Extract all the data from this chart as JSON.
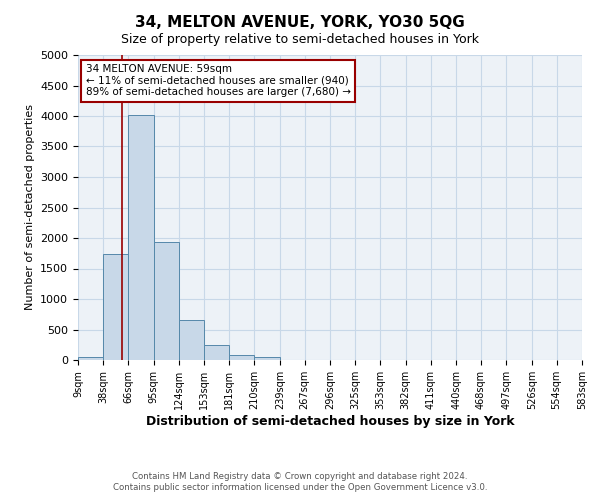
{
  "title": "34, MELTON AVENUE, YORK, YO30 5QG",
  "subtitle": "Size of property relative to semi-detached houses in York",
  "xlabel": "Distribution of semi-detached houses by size in York",
  "ylabel": "Number of semi-detached properties",
  "bar_color": "#c8d8e8",
  "bar_edge_color": "#5588aa",
  "grid_color": "#c8d8e8",
  "background_color": "#edf2f7",
  "property_line_x": 59,
  "property_line_color": "#990000",
  "annotation_line1": "34 MELTON AVENUE: 59sqm",
  "annotation_line2": "← 11% of semi-detached houses are smaller (940)",
  "annotation_line3": "89% of semi-detached houses are larger (7,680) →",
  "bin_edges": [
    9,
    38,
    66,
    95,
    124,
    153,
    181,
    210,
    239,
    267,
    296,
    325,
    353,
    382,
    411,
    440,
    468,
    497,
    526,
    554,
    583
  ],
  "bin_counts": [
    50,
    1730,
    4020,
    1940,
    650,
    250,
    80,
    50,
    0,
    0,
    0,
    0,
    0,
    0,
    0,
    0,
    0,
    0,
    0,
    0
  ],
  "ylim": [
    0,
    5000
  ],
  "yticks": [
    0,
    500,
    1000,
    1500,
    2000,
    2500,
    3000,
    3500,
    4000,
    4500,
    5000
  ],
  "footer_text": "Contains HM Land Registry data © Crown copyright and database right 2024.\nContains public sector information licensed under the Open Government Licence v3.0.",
  "box_facecolor": "#ffffff",
  "box_edgecolor": "#990000"
}
